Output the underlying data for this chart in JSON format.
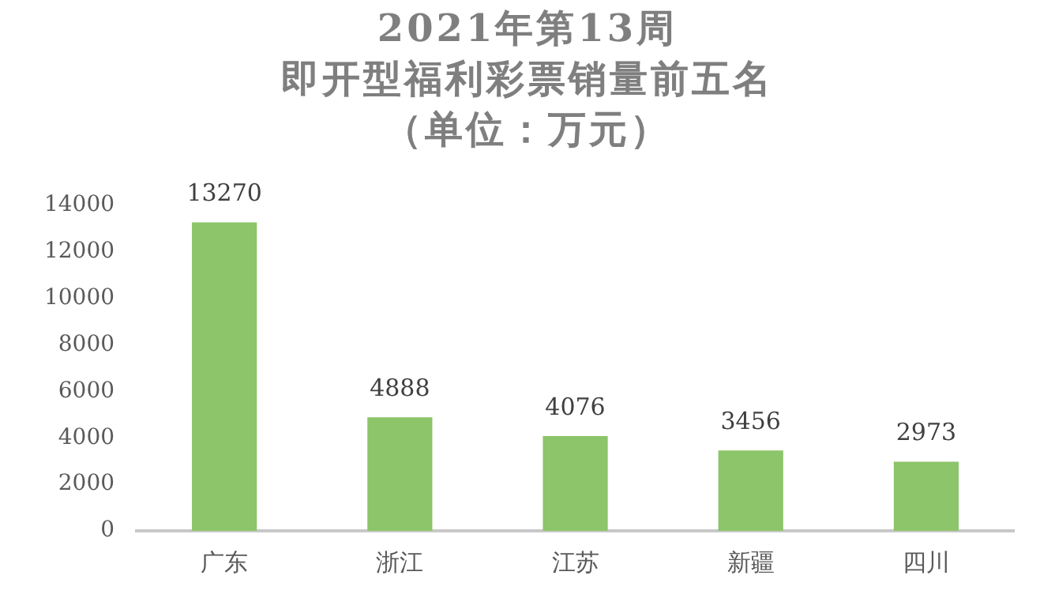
{
  "chart_data": {
    "type": "bar",
    "title": "2021年第13周",
    "subtitle": "即开型福利彩票销量前五名",
    "annotations": [
      "（单位：万元）"
    ],
    "categories": [
      "广东",
      "浙江",
      "江苏",
      "新疆",
      "四川"
    ],
    "values": [
      13270,
      4888,
      4076,
      3456,
      2973
    ],
    "color": "#8cc56a",
    "ylim": [
      0,
      14000
    ],
    "yticks": [
      0,
      2000,
      4000,
      6000,
      8000,
      10000,
      12000,
      14000
    ],
    "grid": false,
    "legend": false,
    "data_labels": true
  }
}
